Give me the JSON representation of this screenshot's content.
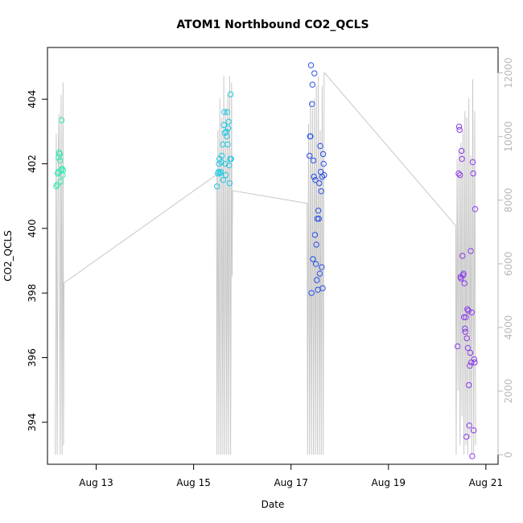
{
  "chart_data": {
    "type": "scatter",
    "title": "ATOM1 Northbound CO2_QCLS",
    "xlabel": "Date",
    "ylabel": "CO2_QCLS",
    "x_unit": "days",
    "x_range": [
      12.0,
      21.25
    ],
    "x_ticks": [
      {
        "x": 13,
        "label": "Aug 13"
      },
      {
        "x": 15,
        "label": "Aug 15"
      },
      {
        "x": 17,
        "label": "Aug 17"
      },
      {
        "x": 19,
        "label": "Aug 19"
      },
      {
        "x": 21,
        "label": "Aug 21"
      }
    ],
    "ylim": [
      392.7,
      405.6
    ],
    "y_ticks": [
      394,
      396,
      398,
      400,
      402,
      404
    ],
    "y2lim": [
      -300,
      12800
    ],
    "y2_ticks": [
      0,
      2000,
      4000,
      6000,
      8000,
      10000,
      12000
    ],
    "y2_tick_color": "#b8b8b8",
    "series": [
      {
        "color": "#2ce8b0",
        "points": [
          [
            12.18,
            401.3
          ],
          [
            12.2,
            401.35
          ],
          [
            12.21,
            401.7
          ],
          [
            12.22,
            401.75
          ],
          [
            12.23,
            402.2
          ],
          [
            12.24,
            402.35
          ],
          [
            12.25,
            402.3
          ],
          [
            12.26,
            402.1
          ],
          [
            12.27,
            401.45
          ],
          [
            12.28,
            401.8
          ],
          [
            12.29,
            403.35
          ],
          [
            12.3,
            401.85
          ],
          [
            12.31,
            401.65
          ],
          [
            12.32,
            401.8
          ]
        ]
      },
      {
        "color": "#20c8e0",
        "points": [
          [
            15.48,
            401.3
          ],
          [
            15.5,
            401.7
          ],
          [
            15.51,
            401.75
          ],
          [
            15.52,
            402.0
          ],
          [
            15.53,
            402.15
          ],
          [
            15.54,
            401.7
          ],
          [
            15.56,
            401.75
          ],
          [
            15.57,
            402.05
          ],
          [
            15.58,
            402.25
          ],
          [
            15.6,
            402.6
          ],
          [
            15.61,
            401.5
          ],
          [
            15.62,
            403.2
          ],
          [
            15.63,
            403.6
          ],
          [
            15.64,
            402.95
          ],
          [
            15.65,
            402.0
          ],
          [
            15.66,
            401.65
          ],
          [
            15.67,
            403.0
          ],
          [
            15.68,
            402.85
          ],
          [
            15.69,
            403.6
          ],
          [
            15.7,
            402.6
          ],
          [
            15.71,
            403.1
          ],
          [
            15.72,
            403.3
          ],
          [
            15.73,
            401.95
          ],
          [
            15.74,
            401.4
          ],
          [
            15.75,
            402.15
          ],
          [
            15.76,
            404.15
          ],
          [
            15.77,
            402.15
          ]
        ]
      },
      {
        "color": "#2850e8",
        "points": [
          [
            17.38,
            402.25
          ],
          [
            17.39,
            402.85
          ],
          [
            17.4,
            402.85
          ],
          [
            17.41,
            405.05
          ],
          [
            17.42,
            398.0
          ],
          [
            17.43,
            403.85
          ],
          [
            17.44,
            404.45
          ],
          [
            17.45,
            399.05
          ],
          [
            17.46,
            402.1
          ],
          [
            17.47,
            401.6
          ],
          [
            17.48,
            404.8
          ],
          [
            17.49,
            399.8
          ],
          [
            17.5,
            401.5
          ],
          [
            17.51,
            398.9
          ],
          [
            17.52,
            399.5
          ],
          [
            17.53,
            398.4
          ],
          [
            17.54,
            400.3
          ],
          [
            17.55,
            398.1
          ],
          [
            17.56,
            400.55
          ],
          [
            17.57,
            400.3
          ],
          [
            17.58,
            401.4
          ],
          [
            17.59,
            398.6
          ],
          [
            17.6,
            402.55
          ],
          [
            17.61,
            401.75
          ],
          [
            17.62,
            401.15
          ],
          [
            17.63,
            398.8
          ],
          [
            17.64,
            401.6
          ],
          [
            17.65,
            398.15
          ],
          [
            17.66,
            402.3
          ],
          [
            17.67,
            402.0
          ],
          [
            17.68,
            401.65
          ]
        ]
      },
      {
        "color": "#8a3ce8",
        "points": [
          [
            20.42,
            396.35
          ],
          [
            20.44,
            401.7
          ],
          [
            20.45,
            403.15
          ],
          [
            20.46,
            403.05
          ],
          [
            20.47,
            401.65
          ],
          [
            20.48,
            398.5
          ],
          [
            20.49,
            398.45
          ],
          [
            20.5,
            402.4
          ],
          [
            20.51,
            402.15
          ],
          [
            20.52,
            399.15
          ],
          [
            20.53,
            398.55
          ],
          [
            20.54,
            398.6
          ],
          [
            20.55,
            397.25
          ],
          [
            20.56,
            398.3
          ],
          [
            20.57,
            396.9
          ],
          [
            20.58,
            396.8
          ],
          [
            20.59,
            397.25
          ],
          [
            20.6,
            393.55
          ],
          [
            20.61,
            396.6
          ],
          [
            20.62,
            397.5
          ],
          [
            20.63,
            396.3
          ],
          [
            20.64,
            397.45
          ],
          [
            20.65,
            395.15
          ],
          [
            20.66,
            393.9
          ],
          [
            20.67,
            395.75
          ],
          [
            20.68,
            396.15
          ],
          [
            20.69,
            399.3
          ],
          [
            20.7,
            395.85
          ],
          [
            20.71,
            397.4
          ],
          [
            20.72,
            392.95
          ],
          [
            20.73,
            402.05
          ],
          [
            20.74,
            401.7
          ],
          [
            20.75,
            393.75
          ],
          [
            20.76,
            395.95
          ],
          [
            20.77,
            395.85
          ],
          [
            20.78,
            400.6
          ]
        ]
      }
    ],
    "secondary_line": {
      "color": "#c8c8c8",
      "points": [
        [
          12.16,
          0
        ],
        [
          12.18,
          10100
        ],
        [
          12.2,
          0
        ],
        [
          12.22,
          9500
        ],
        [
          12.24,
          10700
        ],
        [
          12.26,
          0
        ],
        [
          12.28,
          11300
        ],
        [
          12.3,
          0
        ],
        [
          12.32,
          11700
        ],
        [
          12.33,
          300
        ],
        [
          12.34,
          5400
        ],
        [
          15.47,
          8800
        ],
        [
          15.48,
          0
        ],
        [
          15.5,
          10200
        ],
        [
          15.52,
          0
        ],
        [
          15.54,
          11200
        ],
        [
          15.56,
          0
        ],
        [
          15.58,
          10600
        ],
        [
          15.6,
          0
        ],
        [
          15.62,
          11900
        ],
        [
          15.64,
          0
        ],
        [
          15.66,
          10900
        ],
        [
          15.68,
          0
        ],
        [
          15.7,
          11300
        ],
        [
          15.72,
          0
        ],
        [
          15.74,
          11900
        ],
        [
          15.76,
          0
        ],
        [
          15.78,
          11700
        ],
        [
          15.79,
          5600
        ],
        [
          15.8,
          8300
        ],
        [
          17.33,
          7900
        ],
        [
          17.34,
          0
        ],
        [
          17.36,
          10400
        ],
        [
          17.38,
          0
        ],
        [
          17.4,
          11100
        ],
        [
          17.42,
          0
        ],
        [
          17.44,
          10900
        ],
        [
          17.46,
          0
        ],
        [
          17.48,
          11200
        ],
        [
          17.5,
          0
        ],
        [
          17.52,
          11600
        ],
        [
          17.54,
          0
        ],
        [
          17.56,
          11900
        ],
        [
          17.58,
          0
        ],
        [
          17.6,
          10200
        ],
        [
          17.62,
          0
        ],
        [
          17.64,
          11600
        ],
        [
          17.66,
          0
        ],
        [
          17.68,
          12000
        ],
        [
          17.69,
          12000
        ],
        [
          20.38,
          7200
        ],
        [
          20.39,
          0
        ],
        [
          20.41,
          9300
        ],
        [
          20.43,
          2000
        ],
        [
          20.45,
          9600
        ],
        [
          20.47,
          300
        ],
        [
          20.49,
          9800
        ],
        [
          20.51,
          1200
        ],
        [
          20.53,
          10200
        ],
        [
          20.55,
          0
        ],
        [
          20.57,
          10800
        ],
        [
          20.59,
          300
        ],
        [
          20.61,
          10600
        ],
        [
          20.63,
          0
        ],
        [
          20.65,
          11200
        ],
        [
          20.67,
          500
        ],
        [
          20.69,
          9400
        ],
        [
          20.71,
          0
        ],
        [
          20.73,
          11800
        ],
        [
          20.75,
          0
        ],
        [
          20.77,
          10800
        ],
        [
          20.79,
          300
        ]
      ]
    },
    "grid": false,
    "legend": "none"
  }
}
